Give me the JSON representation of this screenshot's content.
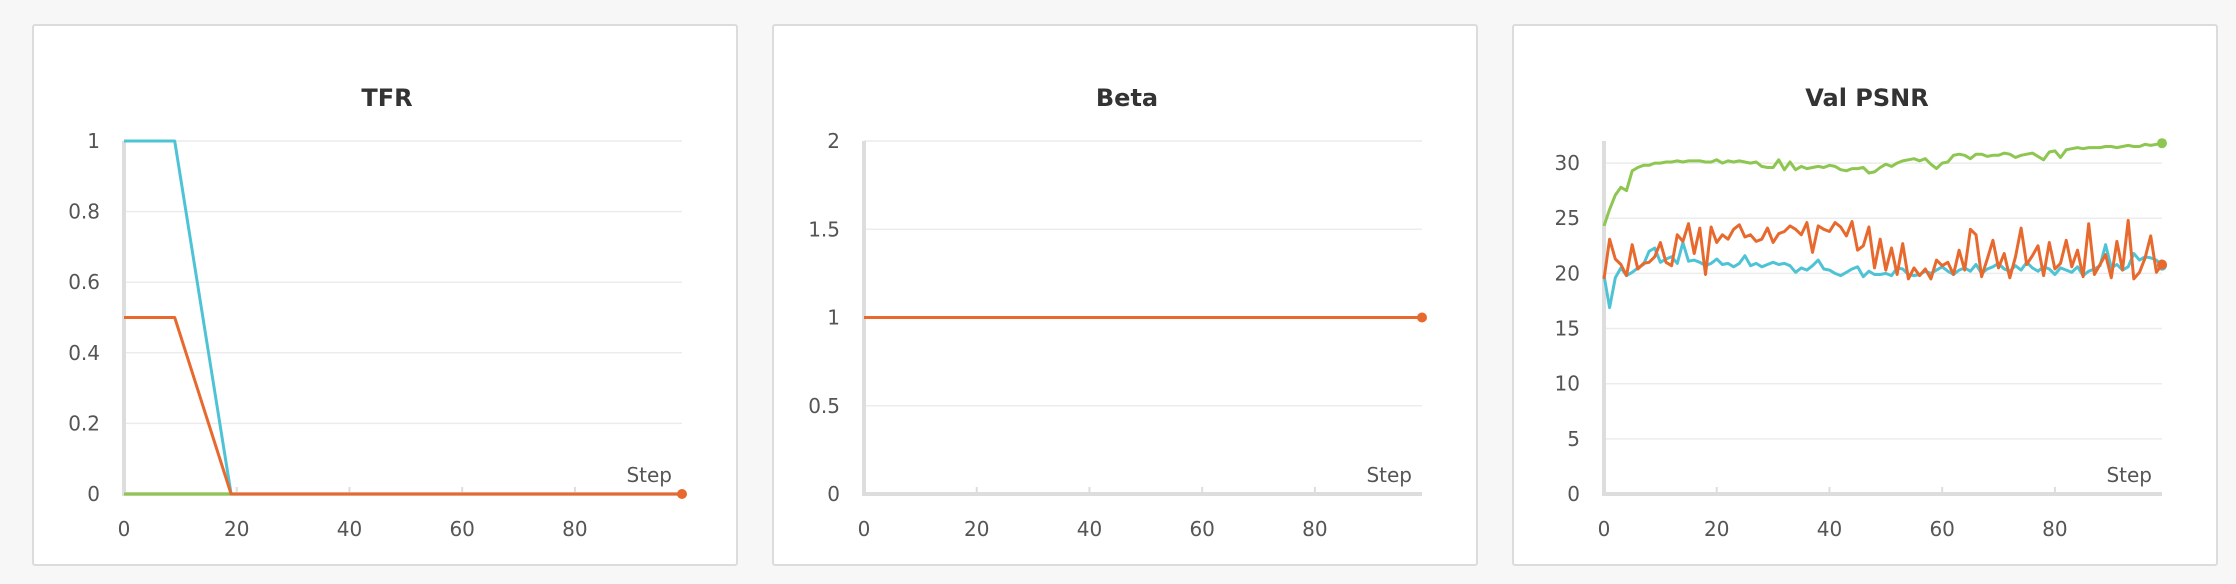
{
  "colors": {
    "cyan": "#4fc3d6",
    "orange": "#e8692d",
    "green": "#8dc650"
  },
  "chart_data": [
    {
      "type": "line",
      "title": "TFR",
      "xlabel": "Step",
      "xlim": [
        0,
        99
      ],
      "ylim": [
        0,
        1
      ],
      "xticks": [
        "0",
        "20",
        "40",
        "60",
        "80"
      ],
      "yticks": [
        "0",
        "0.2",
        "0.4",
        "0.6",
        "0.8",
        "1"
      ],
      "series": [
        {
          "color": "#4fc3d6",
          "points": [
            [
              0,
              1
            ],
            [
              9,
              1
            ],
            [
              19,
              0
            ],
            [
              99,
              0
            ]
          ]
        },
        {
          "color": "#8dc650",
          "points": [
            [
              0,
              0
            ],
            [
              19,
              0
            ]
          ]
        },
        {
          "color": "#e8692d",
          "points": [
            [
              0,
              0.5
            ],
            [
              9,
              0.5
            ],
            [
              19,
              0
            ],
            [
              99,
              0
            ]
          ],
          "end_marker": true
        }
      ]
    },
    {
      "type": "line",
      "title": "Beta",
      "xlabel": "Step",
      "xlim": [
        0,
        99
      ],
      "ylim": [
        0,
        2
      ],
      "xticks": [
        "0",
        "20",
        "40",
        "60",
        "80"
      ],
      "yticks": [
        "0",
        "0.5",
        "1",
        "1.5",
        "2"
      ],
      "series": [
        {
          "color": "#e8692d",
          "points": [
            [
              0,
              1
            ],
            [
              99,
              1
            ]
          ],
          "end_marker": true
        }
      ]
    },
    {
      "type": "line",
      "title": "Val PSNR",
      "xlabel": "Step",
      "xlim": [
        0,
        99
      ],
      "ylim": [
        0,
        32
      ],
      "xticks": [
        "0",
        "20",
        "40",
        "60",
        "80"
      ],
      "yticks": [
        "0",
        "5",
        "10",
        "15",
        "20",
        "25",
        "30"
      ],
      "series": [
        {
          "color": "#8dc650",
          "end_marker": true,
          "y": [
            24.3,
            25.8,
            27.1,
            27.8,
            27.5,
            29.3,
            29.6,
            29.8,
            29.8,
            30.0,
            30.0,
            30.1,
            30.1,
            30.2,
            30.1,
            30.2,
            30.2,
            30.2,
            30.1,
            30.1,
            30.3,
            30.0,
            30.2,
            30.1,
            30.2,
            30.1,
            30.0,
            30.1,
            29.7,
            29.6,
            29.6,
            30.3,
            29.4,
            30.1,
            29.4,
            29.7,
            29.5,
            29.6,
            29.7,
            29.6,
            29.8,
            29.7,
            29.4,
            29.3,
            29.5,
            29.5,
            29.6,
            29.1,
            29.2,
            29.6,
            29.9,
            29.7,
            30.0,
            30.2,
            30.3,
            30.4,
            30.2,
            30.4,
            29.9,
            29.5,
            30.0,
            30.1,
            30.7,
            30.8,
            30.7,
            30.4,
            30.8,
            30.8,
            30.6,
            30.7,
            30.7,
            30.9,
            30.8,
            30.5,
            30.7,
            30.8,
            30.9,
            30.6,
            30.3,
            31.0,
            31.1,
            30.5,
            31.2,
            31.3,
            31.4,
            31.3,
            31.4,
            31.4,
            31.4,
            31.5,
            31.5,
            31.4,
            31.5,
            31.6,
            31.5,
            31.5,
            31.7,
            31.6,
            31.7,
            31.8
          ]
        },
        {
          "color": "#4fc3d6",
          "end_marker": true,
          "y": [
            19.8,
            16.9,
            19.6,
            20.5,
            19.8,
            20.1,
            20.5,
            20.8,
            22.0,
            22.3,
            21.0,
            21.3,
            21.5,
            20.9,
            22.8,
            21.1,
            21.2,
            21.0,
            20.7,
            20.9,
            21.3,
            20.8,
            20.9,
            20.6,
            20.9,
            21.6,
            20.7,
            20.9,
            20.6,
            20.8,
            21.0,
            20.8,
            20.9,
            20.7,
            20.1,
            20.5,
            20.3,
            20.7,
            21.2,
            20.4,
            20.3,
            20.0,
            19.8,
            20.1,
            20.4,
            20.6,
            19.7,
            20.2,
            19.9,
            19.9,
            20.0,
            19.8,
            20.5,
            20.4,
            19.9,
            19.8,
            19.9,
            20.2,
            20.0,
            20.3,
            20.6,
            20.2,
            19.9,
            20.3,
            20.5,
            20.2,
            20.8,
            20.0,
            20.4,
            20.6,
            20.9,
            20.4,
            20.2,
            20.7,
            20.3,
            21.0,
            20.5,
            20.2,
            20.6,
            20.4,
            19.9,
            20.5,
            20.3,
            20.1,
            20.6,
            19.8,
            20.2,
            20.4,
            20.7,
            22.6,
            20.5,
            20.8,
            20.3,
            20.6,
            21.8,
            21.2,
            21.5,
            21.4,
            21.2,
            20.7
          ]
        },
        {
          "color": "#e8692d",
          "end_marker": true,
          "y": [
            19.5,
            23.1,
            21.3,
            20.8,
            19.8,
            22.6,
            20.4,
            20.9,
            21.0,
            21.5,
            22.8,
            21.0,
            20.7,
            23.5,
            22.9,
            24.5,
            21.8,
            24.1,
            19.9,
            24.2,
            22.8,
            23.5,
            23.1,
            24.0,
            24.4,
            23.3,
            23.5,
            22.9,
            23.1,
            24.1,
            22.8,
            23.6,
            23.8,
            24.3,
            24.0,
            23.5,
            24.6,
            21.9,
            24.3,
            24.0,
            23.8,
            24.6,
            24.2,
            23.4,
            24.7,
            22.1,
            22.5,
            24.2,
            20.5,
            23.1,
            20.3,
            22.3,
            19.9,
            22.7,
            19.5,
            20.5,
            19.8,
            20.4,
            19.5,
            21.2,
            20.7,
            21.0,
            19.9,
            22.1,
            20.3,
            24.0,
            23.5,
            19.7,
            21.3,
            23.0,
            20.5,
            21.8,
            19.6,
            21.5,
            24.1,
            20.8,
            21.6,
            22.5,
            19.8,
            22.8,
            20.4,
            20.9,
            23.0,
            20.6,
            22.1,
            19.7,
            24.5,
            19.9,
            20.8,
            21.7,
            19.6,
            22.9,
            20.3,
            24.8,
            19.5,
            20.1,
            21.4,
            23.4,
            20.1,
            20.8
          ]
        }
      ]
    }
  ]
}
